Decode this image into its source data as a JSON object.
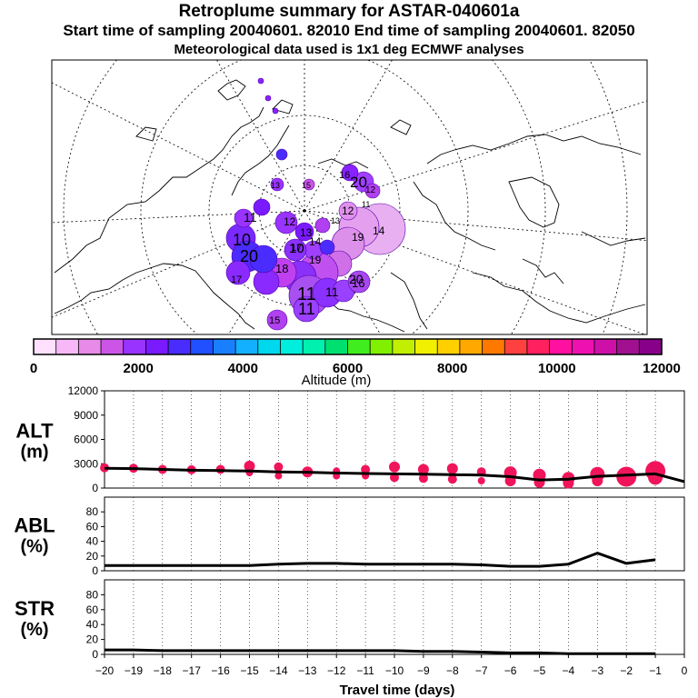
{
  "header": {
    "title": "Retroplume summary for ASTAR-040601a",
    "subtitle": "Start time of sampling 20040601. 82010     End time of sampling 20040601. 82050",
    "note": "Meteorological data used is 1x1 deg ECMWF analyses"
  },
  "colorbar": {
    "label": "Altitude (m)",
    "ticks": [
      "0",
      "2000",
      "4000",
      "6000",
      "8000",
      "10000",
      "12000"
    ],
    "range": [
      0,
      12000
    ],
    "colors": [
      "#ffe0ff",
      "#f6b8f6",
      "#e88ae8",
      "#cc55e8",
      "#9933ff",
      "#7a1aff",
      "#4a2cff",
      "#2050ff",
      "#1a7fff",
      "#12b0ff",
      "#00d8ee",
      "#00eedd",
      "#00f0b0",
      "#00e070",
      "#40ee20",
      "#80f000",
      "#c0f000",
      "#f0f000",
      "#ffd000",
      "#ffa800",
      "#ff7800",
      "#ff4040",
      "#ff2060",
      "#ff10a0",
      "#ee10b0",
      "#cc10a8",
      "#a01090",
      "#880088"
    ]
  },
  "map": {
    "plume_labels": [
      "16",
      "20",
      "12",
      "15",
      "13",
      "12",
      "11",
      "10",
      "19",
      "20",
      "18",
      "17",
      "11",
      "11",
      "12",
      "13",
      "10",
      "14",
      "16",
      "20",
      "11",
      "15",
      "17",
      "19",
      "11",
      "13",
      "14"
    ]
  },
  "chart_data": [
    {
      "type": "line",
      "panel": "ALT",
      "ylabel_line1": "ALT",
      "ylabel_line2": "(m)",
      "ylim": [
        0,
        12000
      ],
      "yticks": [
        "0",
        "3000",
        "6000",
        "9000",
        "12000"
      ],
      "x": [
        -20,
        -19,
        -18,
        -17,
        -16,
        -15,
        -14,
        -13,
        -12,
        -11,
        -10,
        -9,
        -8,
        -7,
        -6,
        -5,
        -4,
        -3,
        -2,
        -1,
        0
      ],
      "values": [
        2450,
        2400,
        2300,
        2200,
        2150,
        2100,
        2000,
        1950,
        1850,
        1800,
        1750,
        1700,
        1650,
        1600,
        1400,
        1000,
        1100,
        1450,
        1600,
        1750,
        800
      ],
      "clusters": [
        {
          "x": -20,
          "y": 2500,
          "r": 5
        },
        {
          "x": -19,
          "y": 2450,
          "r": 5
        },
        {
          "x": -18,
          "y": 2300,
          "r": 5
        },
        {
          "x": -17,
          "y": 2250,
          "r": 5
        },
        {
          "x": -16,
          "y": 2300,
          "r": 5
        },
        {
          "x": -15,
          "y": 2700,
          "r": 6
        },
        {
          "x": -15,
          "y": 1900,
          "r": 4
        },
        {
          "x": -14,
          "y": 2600,
          "r": 5
        },
        {
          "x": -14,
          "y": 1500,
          "r": 4
        },
        {
          "x": -13,
          "y": 2000,
          "r": 6
        },
        {
          "x": -12,
          "y": 2100,
          "r": 4
        },
        {
          "x": -12,
          "y": 1500,
          "r": 4
        },
        {
          "x": -11,
          "y": 2300,
          "r": 5
        },
        {
          "x": -11,
          "y": 1500,
          "r": 4
        },
        {
          "x": -10,
          "y": 2600,
          "r": 6
        },
        {
          "x": -10,
          "y": 1300,
          "r": 5
        },
        {
          "x": -9,
          "y": 2300,
          "r": 6
        },
        {
          "x": -9,
          "y": 1200,
          "r": 5
        },
        {
          "x": -8,
          "y": 2400,
          "r": 6
        },
        {
          "x": -8,
          "y": 1100,
          "r": 5
        },
        {
          "x": -7,
          "y": 2000,
          "r": 5
        },
        {
          "x": -7,
          "y": 900,
          "r": 4
        },
        {
          "x": -6,
          "y": 1900,
          "r": 7
        },
        {
          "x": -6,
          "y": 900,
          "r": 6
        },
        {
          "x": -5,
          "y": 1600,
          "r": 7
        },
        {
          "x": -5,
          "y": 700,
          "r": 6
        },
        {
          "x": -4,
          "y": 1200,
          "r": 7
        },
        {
          "x": -4,
          "y": 600,
          "r": 6
        },
        {
          "x": -3,
          "y": 1700,
          "r": 8
        },
        {
          "x": -3,
          "y": 900,
          "r": 6
        },
        {
          "x": -2,
          "y": 1400,
          "r": 11
        },
        {
          "x": -1,
          "y": 2100,
          "r": 11
        },
        {
          "x": -1,
          "y": 1300,
          "r": 8
        }
      ]
    },
    {
      "type": "line",
      "panel": "ABL",
      "ylabel_line1": "ABL",
      "ylabel_line2": "(%)",
      "ylim": [
        0,
        100
      ],
      "yticks": [
        "0",
        "20",
        "40",
        "60",
        "80"
      ],
      "x": [
        -20,
        -19,
        -18,
        -17,
        -16,
        -15,
        -14,
        -13,
        -12,
        -11,
        -10,
        -9,
        -8,
        -7,
        -6,
        -5,
        -4,
        -3,
        -2,
        -1
      ],
      "values": [
        7,
        7,
        7,
        7,
        7,
        7,
        9,
        10,
        10,
        9,
        9,
        9,
        9,
        8,
        6,
        6,
        9,
        24,
        10,
        15
      ]
    },
    {
      "type": "line",
      "panel": "STR",
      "ylabel_line1": "STR",
      "ylabel_line2": "(%)",
      "ylim": [
        0,
        100
      ],
      "yticks": [
        "0",
        "20",
        "40",
        "60",
        "80"
      ],
      "x": [
        -20,
        -19,
        -18,
        -17,
        -16,
        -15,
        -14,
        -13,
        -12,
        -11,
        -10,
        -9,
        -8,
        -7,
        -6,
        -5,
        -4,
        -3,
        -2,
        -1
      ],
      "values": [
        6,
        6,
        5,
        5,
        5,
        5,
        5,
        5,
        5,
        5,
        5,
        4,
        4,
        3,
        2,
        2,
        1,
        1,
        1,
        1
      ]
    }
  ],
  "xaxis": {
    "label": "Travel time (days)",
    "ticks": [
      "−20",
      "−19",
      "−18",
      "−17",
      "−16",
      "−15",
      "−14",
      "−13",
      "−12",
      "−11",
      "−10",
      "−9",
      "−8",
      "−7",
      "−6",
      "−5",
      "−4",
      "−3",
      "−2",
      "−1",
      "0"
    ]
  }
}
